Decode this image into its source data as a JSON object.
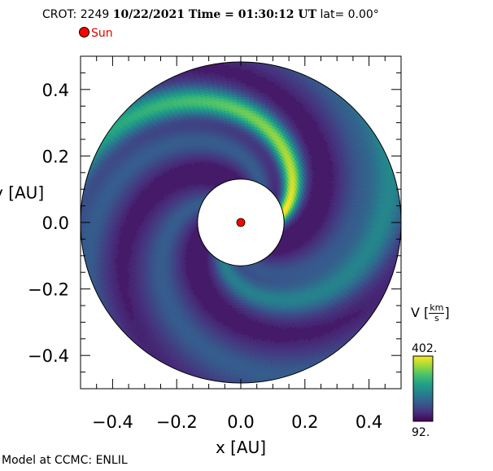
{
  "header": {
    "crot_label": "CROT: 2249",
    "datetime": "10/22/2021 Time = 01:30:12 UT",
    "lat_label": "lat= 0.00°"
  },
  "legend": {
    "sun_label": "Sun"
  },
  "footer": "Model at CCMC: ENLIL",
  "colorbar": {
    "var": "V",
    "unit_num": "km",
    "unit_den": "s",
    "max_label": "402.",
    "min_label": "92.",
    "colors": [
      "#440154",
      "#46337e",
      "#365c8d",
      "#277f8e",
      "#1fa187",
      "#4ac16d",
      "#9fda3a",
      "#fde725"
    ]
  },
  "chart_data": {
    "type": "heatmap",
    "projection": "polar",
    "variable": "V",
    "value_range": [
      92,
      402
    ],
    "xlabel": "x [AU]",
    "ylabel": "y [AU]",
    "xlim": [
      -0.5,
      0.5
    ],
    "ylim": [
      -0.5,
      0.5
    ],
    "x_ticks": [
      "−0.4",
      "−0.2",
      "0.0",
      "0.2",
      "0.4"
    ],
    "y_ticks": [
      "0.4",
      "0.2",
      "0.0",
      "−0.2",
      "−0.4"
    ],
    "inner_radius": 0.135,
    "outer_radius": 0.5,
    "sun_position": [
      0.0,
      0.0
    ]
  }
}
